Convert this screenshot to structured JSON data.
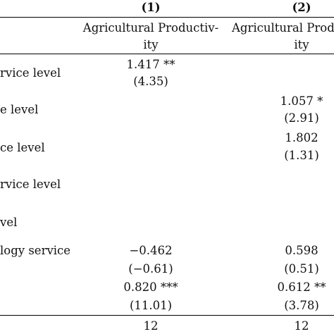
{
  "table": {
    "columns": [
      {
        "number": "(1)",
        "header_line1": "Agricultural Productiv-",
        "header_line2": "ity"
      },
      {
        "number": "(2)",
        "header_line1": "Agricultural Produc",
        "header_line2": "ity"
      }
    ],
    "row_labels": [
      "rvice level",
      "e level",
      "ce level",
      "rvice level",
      "vel",
      "logy service"
    ],
    "cells": {
      "r1_c1_coef": "1.417 **",
      "r1_c1_t": "(4.35)",
      "r2_c2_coef": "1.057 *",
      "r2_c2_t": "(2.91)",
      "r3_c2_coef": "1.802",
      "r3_c2_t": "(1.31)",
      "r6_c1_coef": "−0.462",
      "r6_c2_coef": "0.598",
      "r6_c1_t": "(−0.61)",
      "r6_c2_t": "(0.51)",
      "r7_c1_coef": "0.820 ***",
      "r7_c2_coef": "0.612 **",
      "r7_c1_t": "(11.01)",
      "r7_c2_t": "(3.78)",
      "n_c1": "12",
      "n_c2": "12"
    }
  }
}
